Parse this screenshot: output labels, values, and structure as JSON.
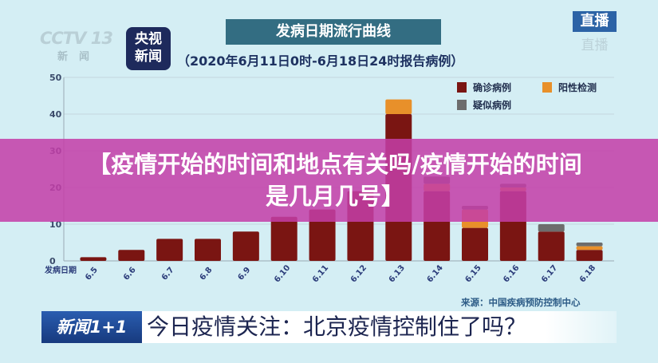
{
  "channel": {
    "cctv_logo": "CCTV 13",
    "cctv_sub": "新闻",
    "yangshi_logo": "央视新闻",
    "live_badge": "直播",
    "live_reflection": "直播"
  },
  "chart_data": {
    "type": "bar",
    "stacked": true,
    "title": "发病日期流行曲线",
    "subtitle": "（2020年6月11日0时-6月18日24时报告病例）",
    "xlabel": "发病日期",
    "ylabel": "",
    "ylim": [
      0,
      50
    ],
    "yticks": [
      0,
      10,
      20,
      30,
      40,
      50
    ],
    "grid": true,
    "legend_position": "top-right",
    "categories": [
      "6.5",
      "6.6",
      "6.7",
      "6.8",
      "6.9",
      "6.10",
      "6.11",
      "6.12",
      "6.13",
      "6.14",
      "6.15",
      "6.16",
      "6.17",
      "6.18"
    ],
    "series": [
      {
        "name": "确诊病例",
        "color": "#7a1512",
        "values": [
          1,
          3,
          6,
          6,
          8,
          12,
          14,
          19,
          40,
          19,
          9,
          19,
          8,
          3
        ]
      },
      {
        "name": "阳性检测",
        "color": "#e8902a",
        "values": [
          0,
          0,
          0,
          0,
          0,
          0,
          0,
          0,
          4,
          2,
          5,
          1,
          0,
          1
        ]
      },
      {
        "name": "疑似病例",
        "color": "#6d6d6d",
        "values": [
          0,
          0,
          0,
          0,
          0,
          0,
          0,
          0,
          0,
          2,
          1,
          1,
          2,
          1
        ]
      }
    ]
  },
  "overlay": {
    "line1": "【疫情开始的时间和地点有关吗/疫情开始的时间",
    "line2": "是几月几号】"
  },
  "source": "来源：中国疾病预防控制中心",
  "ticker": {
    "program_logo": "新闻1+1",
    "headline": "今日疫情关注：北京疫情控制住了吗？"
  }
}
